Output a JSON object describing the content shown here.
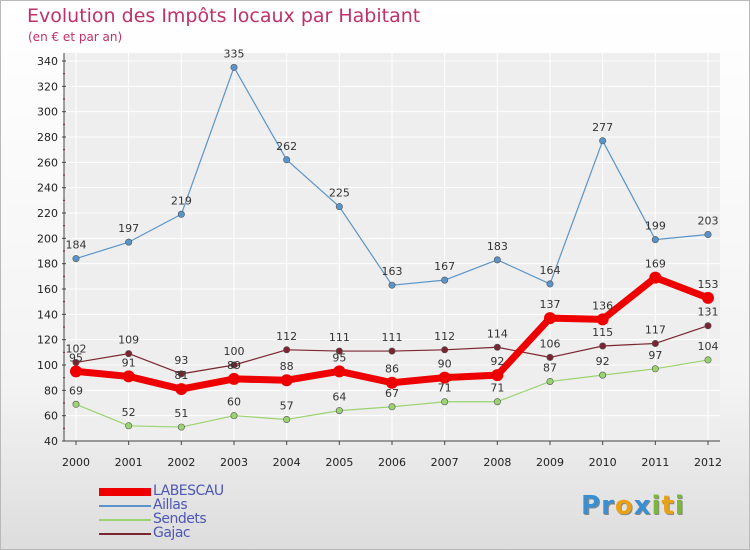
{
  "header": {
    "title": "Evolution des Impôts locaux par Habitant",
    "subtitle": "(en € et par an)"
  },
  "logo": {
    "text": "Proxiti",
    "letters": [
      {
        "ch": "P",
        "color": "#3a8fd0"
      },
      {
        "ch": "r",
        "color": "#3a8fd0"
      },
      {
        "ch": "o",
        "color": "#e8a21a"
      },
      {
        "ch": "x",
        "color": "#3a8fd0"
      },
      {
        "ch": "i",
        "color": "#7ab83a"
      },
      {
        "ch": "t",
        "color": "#e8a21a"
      },
      {
        "ch": "i",
        "color": "#7ab83a"
      }
    ]
  },
  "colors": {
    "title": "#c0306a",
    "axis": "#444444",
    "grid": "#ffffff"
  },
  "chart_data": {
    "type": "line",
    "title": "Evolution des Impôts locaux par Habitant",
    "subtitle": "(en € et par an)",
    "x": [
      "2000",
      "2001",
      "2002",
      "2003",
      "2004",
      "2005",
      "2006",
      "2007",
      "2008",
      "2009",
      "2010",
      "2011",
      "2012"
    ],
    "ylim": [
      40,
      340
    ],
    "yticks": [
      40,
      60,
      80,
      100,
      120,
      140,
      160,
      180,
      200,
      220,
      240,
      260,
      280,
      300,
      320,
      340
    ],
    "grid": true,
    "legend_position": "bottom-left",
    "series": [
      {
        "name": "Aillas",
        "color": "#5b94c8",
        "width": 1.2,
        "values": [
          184,
          197,
          219,
          335,
          262,
          225,
          163,
          167,
          183,
          164,
          277,
          199,
          203
        ]
      },
      {
        "name": "Sendets",
        "color": "#9ad370",
        "width": 1.2,
        "values": [
          69,
          52,
          51,
          60,
          57,
          64,
          67,
          71,
          71,
          87,
          92,
          97,
          104
        ]
      },
      {
        "name": "Gajac",
        "color": "#7a2630",
        "width": 1.2,
        "values": [
          102,
          109,
          93,
          100,
          112,
          111,
          111,
          112,
          114,
          106,
          115,
          117,
          131
        ]
      },
      {
        "name": "LABESCAU",
        "color": "#ee0000",
        "width": 7,
        "values": [
          95,
          91,
          81,
          89,
          88,
          95,
          86,
          90,
          92,
          137,
          136,
          169,
          153
        ]
      }
    ],
    "legend": [
      {
        "name": "LABESCAU",
        "color": "#ee0000",
        "width": 8
      },
      {
        "name": "Aillas",
        "color": "#5b94c8",
        "width": 2
      },
      {
        "name": "Sendets",
        "color": "#9ad370",
        "width": 2
      },
      {
        "name": "Gajac",
        "color": "#7a2630",
        "width": 2
      }
    ]
  }
}
